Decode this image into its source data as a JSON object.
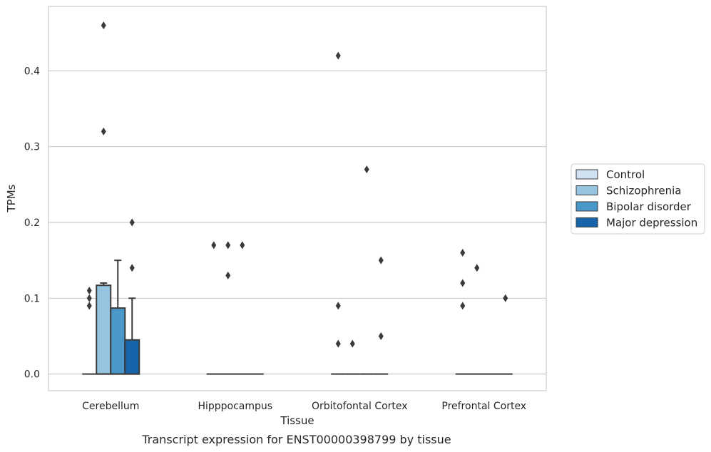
{
  "chart_data": {
    "type": "box",
    "title": "",
    "caption": "Transcript expression for ENST00000398799 by tissue",
    "xlabel": "Tissue",
    "ylabel": "TPMs",
    "ylim": [
      -0.022,
      0.485
    ],
    "yticks": [
      "0.0",
      "0.1",
      "0.2",
      "0.3",
      "0.4"
    ],
    "ytick_values": [
      0.0,
      0.1,
      0.2,
      0.3,
      0.4
    ],
    "grid": "horizontal",
    "legend_position": "right",
    "categories": [
      "Cerebellum",
      "Hipppocampus",
      "Orbitofontal Cortex",
      "Prefrontal Cortex"
    ],
    "colors": {
      "Control": "#d0e1f2",
      "Schizophrenia": "#94c4df",
      "Bipolar disorder": "#4a98c9",
      "Major depression": "#1764ab",
      "edge": "#3a3a3a",
      "grid": "#cccccc",
      "frame": "#cccccc"
    },
    "series": [
      {
        "name": "Control",
        "boxes": [
          {
            "q1": 0,
            "median": 0,
            "q3": 0,
            "whisker_low": 0,
            "whisker_high": 0,
            "outliers": [
              0.09,
              0.1,
              0.11
            ]
          },
          {
            "q1": 0,
            "median": 0,
            "q3": 0,
            "whisker_low": 0,
            "whisker_high": 0,
            "outliers": [
              0.17
            ]
          },
          {
            "q1": 0,
            "median": 0,
            "q3": 0,
            "whisker_low": 0,
            "whisker_high": 0,
            "outliers": [
              0.04,
              0.09,
              0.42
            ]
          },
          {
            "q1": 0,
            "median": 0,
            "q3": 0,
            "whisker_low": 0,
            "whisker_high": 0,
            "outliers": [
              0.09,
              0.12,
              0.16
            ]
          }
        ]
      },
      {
        "name": "Schizophrenia",
        "boxes": [
          {
            "q1": 0,
            "median": 0,
            "q3": 0.117,
            "whisker_low": 0,
            "whisker_high": 0.12,
            "outliers": [
              0.32,
              0.46
            ]
          },
          {
            "q1": 0,
            "median": 0,
            "q3": 0,
            "whisker_low": 0,
            "whisker_high": 0,
            "outliers": [
              0.13,
              0.17
            ]
          },
          {
            "q1": 0,
            "median": 0,
            "q3": 0,
            "whisker_low": 0,
            "whisker_high": 0,
            "outliers": [
              0.04
            ]
          },
          {
            "q1": 0,
            "median": 0,
            "q3": 0,
            "whisker_low": 0,
            "whisker_high": 0,
            "outliers": [
              0.14
            ]
          }
        ]
      },
      {
        "name": "Bipolar disorder",
        "boxes": [
          {
            "q1": 0,
            "median": 0,
            "q3": 0.087,
            "whisker_low": 0,
            "whisker_high": 0.15,
            "outliers": []
          },
          {
            "q1": 0,
            "median": 0,
            "q3": 0,
            "whisker_low": 0,
            "whisker_high": 0,
            "outliers": [
              0.17
            ]
          },
          {
            "q1": 0,
            "median": 0,
            "q3": 0,
            "whisker_low": 0,
            "whisker_high": 0,
            "outliers": [
              0.27
            ]
          },
          {
            "q1": 0,
            "median": 0,
            "q3": 0,
            "whisker_low": 0,
            "whisker_high": 0,
            "outliers": []
          }
        ]
      },
      {
        "name": "Major depression",
        "boxes": [
          {
            "q1": 0,
            "median": 0,
            "q3": 0.045,
            "whisker_low": 0,
            "whisker_high": 0.1,
            "outliers": [
              0.14,
              0.2
            ]
          },
          {
            "q1": 0,
            "median": 0,
            "q3": 0,
            "whisker_low": 0,
            "whisker_high": 0,
            "outliers": []
          },
          {
            "q1": 0,
            "median": 0,
            "q3": 0,
            "whisker_low": 0,
            "whisker_high": 0,
            "outliers": [
              0.05,
              0.15
            ]
          },
          {
            "q1": 0,
            "median": 0,
            "q3": 0,
            "whisker_low": 0,
            "whisker_high": 0,
            "outliers": [
              0.1
            ]
          }
        ]
      }
    ]
  }
}
